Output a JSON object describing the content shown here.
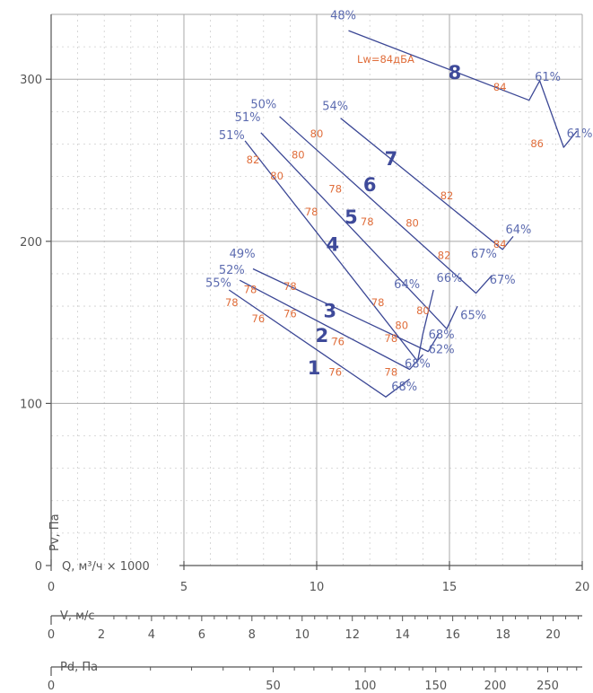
{
  "colors": {
    "curve": "#3b4795",
    "efficiency": "#5c6bb0",
    "noise": "#e06d3a",
    "grid_major": "#a9a9a9",
    "grid_minor": "#cfcfcf",
    "axis": "#555555",
    "text": "#555555"
  },
  "chart_data": {
    "type": "line",
    "title": "",
    "xlabel": "Q, м³/ч × 1000",
    "ylabel": "Pv, Па",
    "xlim": [
      0,
      20
    ],
    "ylim": [
      0,
      340
    ],
    "x_ticks": [
      0,
      5,
      10,
      15,
      20
    ],
    "y_ticks": [
      0,
      100,
      200,
      300
    ],
    "grid": true,
    "extra_axes": [
      {
        "label": "V, м/с",
        "ticks": [
          0,
          2,
          4,
          6,
          8,
          10,
          12,
          14,
          16,
          18,
          20
        ],
        "ticks_per_q": 1.058
      },
      {
        "label": "Pd, Па",
        "ticks": [
          0,
          50,
          100,
          150,
          200,
          250
        ],
        "sqrt_scale_at_q20": 286
      }
    ],
    "series": [
      {
        "name": "1",
        "points": [
          [
            6.7,
            170
          ],
          [
            12.6,
            104
          ],
          [
            13.5,
            115
          ]
        ],
        "efficiency_start": "55%",
        "efficiency_end": "68%"
      },
      {
        "name": "2",
        "points": [
          [
            7.1,
            176
          ],
          [
            13.5,
            121
          ],
          [
            14.0,
            130
          ]
        ],
        "efficiency_start": "52%",
        "efficiency_end": "68%"
      },
      {
        "name": "3",
        "points": [
          [
            7.6,
            183
          ],
          [
            14.2,
            132
          ],
          [
            14.6,
            143
          ]
        ],
        "efficiency_start": "49%",
        "efficiency_end": "68%"
      },
      {
        "name": "4",
        "points": [
          [
            7.3,
            262
          ],
          [
            13.8,
            126
          ],
          [
            14.0,
            143
          ],
          [
            14.4,
            170
          ]
        ],
        "efficiency_start": "51%",
        "efficiency_end": "62%",
        "efficiency_mid": "64%"
      },
      {
        "name": "5",
        "points": [
          [
            7.9,
            267
          ],
          [
            14.9,
            146
          ],
          [
            15.3,
            160
          ]
        ],
        "efficiency_start": "51%",
        "efficiency_end": "65%",
        "efficiency_mid": "66%"
      },
      {
        "name": "6",
        "points": [
          [
            8.6,
            277
          ],
          [
            16.0,
            168
          ],
          [
            16.6,
            179
          ]
        ],
        "efficiency_start": "50%",
        "efficiency_end": "67%",
        "efficiency_mid": "67%"
      },
      {
        "name": "7",
        "points": [
          [
            10.9,
            276
          ],
          [
            17.0,
            195
          ],
          [
            17.4,
            203
          ]
        ],
        "efficiency_start": "54%",
        "efficiency_end": "64%"
      },
      {
        "name": "8",
        "points": [
          [
            11.2,
            330
          ],
          [
            18.0,
            287
          ],
          [
            18.4,
            299
          ],
          [
            19.3,
            258
          ],
          [
            19.8,
            268
          ]
        ],
        "efficiency_start": "48%",
        "efficiency_end": "61%",
        "efficiency_mid": "61%"
      }
    ],
    "annotations": {
      "efficiency": [
        {
          "text": "55%",
          "q": 6.3,
          "p": 172
        },
        {
          "text": "52%",
          "q": 6.8,
          "p": 180
        },
        {
          "text": "49%",
          "q": 7.2,
          "p": 190
        },
        {
          "text": "68%",
          "q": 13.3,
          "p": 108
        },
        {
          "text": "68%",
          "q": 13.8,
          "p": 122
        },
        {
          "text": "68%",
          "q": 14.7,
          "p": 140
        },
        {
          "text": "62%",
          "q": 14.7,
          "p": 131
        },
        {
          "text": "64%",
          "q": 13.4,
          "p": 171
        },
        {
          "text": "66%",
          "q": 15.0,
          "p": 175
        },
        {
          "text": "65%",
          "q": 15.9,
          "p": 152
        },
        {
          "text": "67%",
          "q": 16.3,
          "p": 190
        },
        {
          "text": "67%",
          "q": 17.0,
          "p": 174
        },
        {
          "text": "64%",
          "q": 17.6,
          "p": 205
        },
        {
          "text": "51%",
          "q": 6.8,
          "p": 263
        },
        {
          "text": "51%",
          "q": 7.4,
          "p": 274
        },
        {
          "text": "50%",
          "q": 8.0,
          "p": 282
        },
        {
          "text": "54%",
          "q": 10.7,
          "p": 281
        },
        {
          "text": "48%",
          "q": 11.0,
          "p": 337
        },
        {
          "text": "61%",
          "q": 18.7,
          "p": 299
        },
        {
          "text": "61%",
          "q": 19.9,
          "p": 264
        }
      ],
      "noise": [
        {
          "text": "78",
          "q": 6.8,
          "p": 160
        },
        {
          "text": "76",
          "q": 7.8,
          "p": 150
        },
        {
          "text": "76",
          "q": 10.7,
          "p": 117
        },
        {
          "text": "78",
          "q": 7.5,
          "p": 168
        },
        {
          "text": "76",
          "q": 9.0,
          "p": 153
        },
        {
          "text": "76",
          "q": 10.8,
          "p": 136
        },
        {
          "text": "78",
          "q": 12.8,
          "p": 117
        },
        {
          "text": "78",
          "q": 9.0,
          "p": 170
        },
        {
          "text": "78",
          "q": 12.8,
          "p": 138
        },
        {
          "text": "80",
          "q": 13.2,
          "p": 146
        },
        {
          "text": "78",
          "q": 12.3,
          "p": 160
        },
        {
          "text": "82",
          "q": 7.6,
          "p": 248
        },
        {
          "text": "80",
          "q": 8.5,
          "p": 238
        },
        {
          "text": "78",
          "q": 9.8,
          "p": 216
        },
        {
          "text": "80",
          "q": 9.3,
          "p": 251
        },
        {
          "text": "78",
          "q": 10.7,
          "p": 230
        },
        {
          "text": "78",
          "q": 11.9,
          "p": 210
        },
        {
          "text": "80",
          "q": 10.0,
          "p": 264
        },
        {
          "text": "80",
          "q": 13.6,
          "p": 209
        },
        {
          "text": "80",
          "q": 14.0,
          "p": 155
        },
        {
          "text": "82",
          "q": 14.8,
          "p": 189
        },
        {
          "text": "82",
          "q": 14.9,
          "p": 226
        },
        {
          "text": "84",
          "q": 16.9,
          "p": 196
        },
        {
          "text": "84",
          "q": 16.9,
          "p": 293
        },
        {
          "text": "86",
          "q": 18.3,
          "p": 258
        },
        {
          "text": "Lw=84дБА",
          "q": 12.6,
          "p": 310
        }
      ],
      "curve_numbers": [
        {
          "text": "1",
          "q": 9.9,
          "p": 118
        },
        {
          "text": "2",
          "q": 10.2,
          "p": 138
        },
        {
          "text": "3",
          "q": 10.5,
          "p": 153
        },
        {
          "text": "4",
          "q": 10.6,
          "p": 194
        },
        {
          "text": "5",
          "q": 11.3,
          "p": 211
        },
        {
          "text": "6",
          "q": 12.0,
          "p": 231
        },
        {
          "text": "7",
          "q": 12.8,
          "p": 247
        },
        {
          "text": "8",
          "q": 15.2,
          "p": 300
        }
      ]
    }
  }
}
